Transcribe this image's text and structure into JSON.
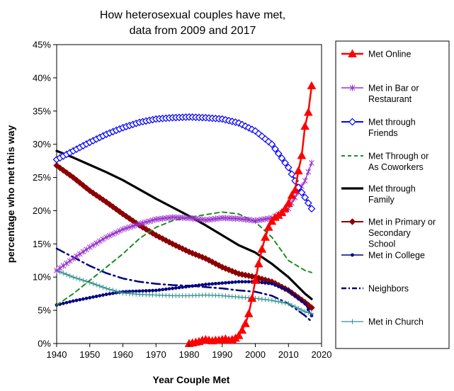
{
  "chart_data": {
    "type": "line",
    "title_line1": "How heterosexual couples have met,",
    "title_line2": "data from 2009 and 2017",
    "xlabel": "Year Couple Met",
    "ylabel": "percentage who met this way",
    "xlim": [
      1940,
      2020
    ],
    "ylim": [
      0,
      45
    ],
    "x_ticks": [
      "1940",
      "1950",
      "1960",
      "1970",
      "1980",
      "1990",
      "2000",
      "2010",
      "2020"
    ],
    "y_ticks": [
      "0%",
      "5%",
      "10%",
      "15%",
      "20%",
      "25%",
      "30%",
      "35%",
      "40%",
      "45%"
    ],
    "grid": false,
    "legend_position": "right",
    "series": [
      {
        "name": "Met Online",
        "legend_lines": [
          "Met Online"
        ],
        "color": "#ff0000",
        "width": 2.5,
        "dash": "",
        "marker": "triangle",
        "marker_every": 1,
        "x": [
          1980,
          1981,
          1982,
          1983,
          1984,
          1985,
          1986,
          1987,
          1988,
          1989,
          1990,
          1991,
          1992,
          1993,
          1994,
          1995,
          1996,
          1997,
          1998,
          1999,
          2000,
          2001,
          2002,
          2003,
          2004,
          2005,
          2006,
          2007,
          2008,
          2009,
          2010,
          2011,
          2012,
          2013,
          2014,
          2015,
          2016,
          2017
        ],
        "y": [
          0,
          0.1,
          0.2,
          0.3,
          0.5,
          0.6,
          0.5,
          0.4,
          0.5,
          0.5,
          0.6,
          0.7,
          0.5,
          0.6,
          0.8,
          1.2,
          2,
          3,
          4.5,
          6.8,
          9.5,
          12,
          14.2,
          16,
          17.5,
          18.4,
          19,
          19.3,
          19.7,
          20.3,
          21.1,
          22.3,
          23.1,
          26,
          28.3,
          32.7,
          34.8,
          38.8
        ]
      },
      {
        "name": "Met in Bar or Restaurant",
        "legend_lines": [
          "Met in Bar or",
          "Restaurant"
        ],
        "color": "#9932cc",
        "width": 1.5,
        "dash": "",
        "marker": "asterisk",
        "marker_every": 1,
        "x": [
          1940,
          1945,
          1950,
          1955,
          1960,
          1965,
          1970,
          1975,
          1980,
          1985,
          1990,
          1995,
          2000,
          2005,
          2010,
          2015,
          2017
        ],
        "y": [
          11,
          12.8,
          14.5,
          16,
          17.2,
          18,
          18.7,
          19,
          18.9,
          18.6,
          18.9,
          18.8,
          18.5,
          18.9,
          20.3,
          24.5,
          27.2
        ]
      },
      {
        "name": "Met through Friends",
        "legend_lines": [
          "Met through",
          "Friends"
        ],
        "color": "#0000ff",
        "width": 2,
        "dash": "",
        "marker": "diamond-open",
        "marker_every": 1,
        "x": [
          1940,
          1945,
          1950,
          1955,
          1960,
          1965,
          1970,
          1975,
          1980,
          1985,
          1990,
          1995,
          2000,
          2005,
          2010,
          2013,
          2015,
          2017
        ],
        "y": [
          27.7,
          29,
          30.3,
          31.5,
          32.5,
          33.3,
          33.8,
          34,
          34.1,
          34,
          33.8,
          33.2,
          32,
          30,
          26.5,
          23.5,
          22,
          20.3
        ]
      },
      {
        "name": "Met Through or As Coworkers",
        "legend_lines": [
          "Met Through or",
          "As Coworkers"
        ],
        "color": "#228b22",
        "width": 2,
        "dash": "6,5",
        "marker": "none",
        "marker_every": 1,
        "x": [
          1940,
          1945,
          1950,
          1955,
          1960,
          1965,
          1970,
          1975,
          1980,
          1985,
          1990,
          1995,
          2000,
          2005,
          2010,
          2015,
          2017
        ],
        "y": [
          5.8,
          7.5,
          9.5,
          11.5,
          13.5,
          15.8,
          17.5,
          18.5,
          19,
          19.4,
          19.8,
          19.5,
          18.3,
          16,
          12.5,
          11,
          10.7
        ]
      },
      {
        "name": "Met through Family",
        "legend_lines": [
          "Met through",
          "Family"
        ],
        "color": "#000000",
        "width": 3.2,
        "dash": "",
        "marker": "none",
        "marker_every": 1,
        "x": [
          1940,
          1945,
          1950,
          1955,
          1960,
          1965,
          1970,
          1975,
          1980,
          1985,
          1990,
          1995,
          2000,
          2005,
          2010,
          2015,
          2017
        ],
        "y": [
          29,
          28,
          26.9,
          25.8,
          24.6,
          23.2,
          21.8,
          20.5,
          19.2,
          17.8,
          16.3,
          14.8,
          13.7,
          12,
          10,
          7.5,
          6.7
        ]
      },
      {
        "name": "Met in Primary or Secondary School",
        "legend_lines": [
          "Met in Primary or",
          "Secondary",
          "School"
        ],
        "color": "#8b0000",
        "width": 2,
        "dash": "",
        "marker": "diamond",
        "marker_every": 1,
        "x": [
          1940,
          1945,
          1950,
          1955,
          1960,
          1965,
          1970,
          1975,
          1980,
          1985,
          1990,
          1995,
          2000,
          2005,
          2010,
          2015,
          2017
        ],
        "y": [
          26.8,
          25,
          23,
          21.3,
          19.5,
          17.8,
          16.3,
          15,
          13.8,
          12.8,
          11.5,
          10.5,
          10,
          9.3,
          8,
          6.2,
          5.4
        ]
      },
      {
        "name": "Met in College",
        "legend_lines": [
          "Met in College"
        ],
        "color": "#000080",
        "width": 1.5,
        "dash": "",
        "marker": "dot",
        "marker_every": 1,
        "x": [
          1940,
          1945,
          1950,
          1955,
          1960,
          1965,
          1970,
          1975,
          1980,
          1985,
          1990,
          1995,
          2000,
          2005,
          2010,
          2015,
          2017
        ],
        "y": [
          5.8,
          6.4,
          6.9,
          7.4,
          7.8,
          7.9,
          8,
          8.3,
          8.6,
          8.9,
          9.1,
          9.3,
          9.3,
          9,
          8,
          6,
          4.2
        ]
      },
      {
        "name": "Neighbors",
        "legend_lines": [
          "Neighbors"
        ],
        "color": "#000080",
        "width": 2.5,
        "dash": "12,5,2,5",
        "marker": "none",
        "marker_every": 1,
        "x": [
          1940,
          1945,
          1950,
          1955,
          1960,
          1965,
          1970,
          1975,
          1980,
          1985,
          1990,
          1995,
          2000,
          2005,
          2010,
          2015,
          2017
        ],
        "y": [
          14.3,
          13,
          11.7,
          10.6,
          9.8,
          9.3,
          9,
          8.8,
          8.7,
          8.5,
          8.3,
          8,
          7.8,
          7.2,
          6,
          4.2,
          3.3
        ]
      },
      {
        "name": "Met in Church",
        "legend_lines": [
          "Met in Church"
        ],
        "color": "#2f8f8f",
        "width": 1.2,
        "dash": "",
        "marker": "plus",
        "marker_every": 1,
        "x": [
          1940,
          1945,
          1950,
          1955,
          1960,
          1965,
          1970,
          1975,
          1980,
          1985,
          1990,
          1995,
          2000,
          2005,
          2010,
          2015,
          2017
        ],
        "y": [
          11,
          10,
          9.2,
          8.3,
          7.6,
          7.4,
          7.3,
          7.2,
          7.2,
          7.3,
          7.2,
          7,
          6.8,
          6.5,
          6,
          4.8,
          4.5
        ]
      }
    ]
  }
}
